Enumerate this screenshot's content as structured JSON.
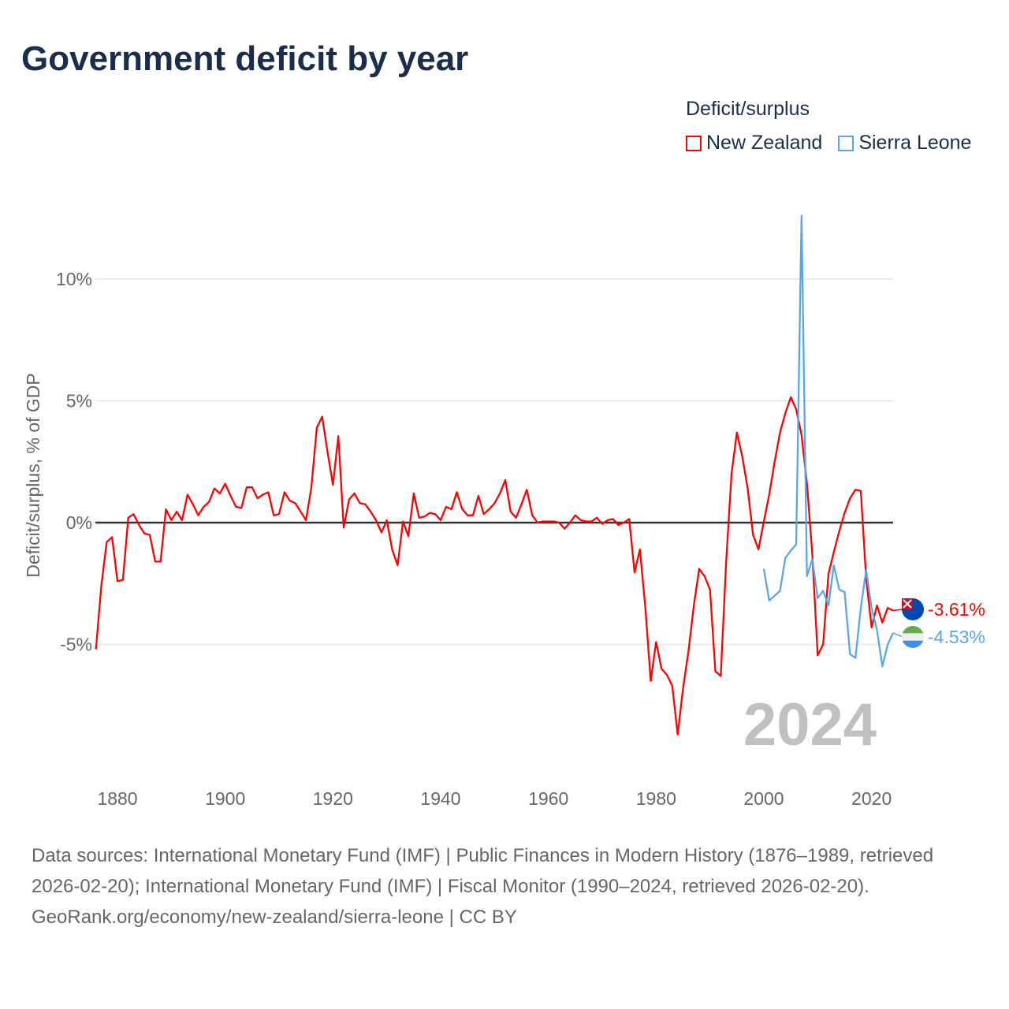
{
  "title": "Government deficit by year",
  "legend": {
    "title": "Deficit/surplus"
  },
  "colors": {
    "nz": "#ff0000",
    "sl": "#5aa6ee",
    "zero": "#333333",
    "grid": "#e6e6e6"
  },
  "chart_data": {
    "type": "line",
    "title": "Government deficit by year",
    "xlabel": "",
    "ylabel": "Deficit/surplus, % of GDP",
    "xlim": [
      1876,
      2024
    ],
    "ylim": [
      -10,
      13.5
    ],
    "x_ticks": [
      1880,
      1900,
      1920,
      1940,
      1960,
      1980,
      2000,
      2020
    ],
    "y_ticks": [
      {
        "value": 10,
        "label": "10%"
      },
      {
        "value": 5,
        "label": "5%"
      },
      {
        "value": 0,
        "label": "0%"
      },
      {
        "value": -5,
        "label": "-5%"
      }
    ],
    "grid": true,
    "legend_position": "top-right",
    "year_watermark": "2024",
    "series": [
      {
        "name": "New Zealand",
        "color": "#ff0000",
        "start_year": 1876,
        "end_label": "-3.61%",
        "flag": "new-zealand-flag",
        "values": [
          -5.2,
          -2.6,
          -0.8,
          -0.6,
          -2.4,
          -2.35,
          0.2,
          0.35,
          -0.1,
          -0.45,
          -0.5,
          -1.6,
          -1.6,
          0.55,
          0.1,
          0.45,
          0.1,
          1.15,
          0.75,
          0.3,
          0.65,
          0.85,
          1.4,
          1.2,
          1.6,
          1.1,
          0.65,
          0.6,
          1.45,
          1.45,
          1.0,
          1.15,
          1.25,
          0.3,
          0.35,
          1.25,
          0.9,
          0.8,
          0.45,
          0.1,
          1.45,
          3.9,
          4.35,
          2.9,
          1.55,
          3.55,
          -0.2,
          0.95,
          1.2,
          0.8,
          0.75,
          0.45,
          0.1,
          -0.4,
          0.1,
          -1.1,
          -1.75,
          0.05,
          -0.55,
          1.2,
          0.2,
          0.25,
          0.4,
          0.35,
          0.1,
          0.65,
          0.55,
          1.25,
          0.55,
          0.3,
          0.3,
          1.1,
          0.35,
          0.55,
          0.8,
          1.2,
          1.75,
          0.45,
          0.2,
          0.75,
          1.35,
          0.3,
          0.0,
          0.05,
          0.05,
          0.05,
          0.0,
          -0.25,
          0.0,
          0.3,
          0.1,
          0.05,
          0.05,
          0.2,
          -0.05,
          0.1,
          0.15,
          -0.1,
          0.0,
          0.15,
          -2.05,
          -1.1,
          -3.5,
          -6.5,
          -4.9,
          -6.0,
          -6.25,
          -6.7,
          -8.7,
          -6.8,
          -5.3,
          -3.4,
          -1.9,
          -2.2,
          -2.75,
          -6.1,
          -6.3,
          -1.6,
          2.0,
          3.7,
          2.7,
          1.4,
          -0.5,
          -1.1,
          0.05,
          1.15,
          2.5,
          3.7,
          4.5,
          5.15,
          4.65,
          3.6,
          1.6,
          -1.3,
          -5.45,
          -5.0,
          -2.1,
          -1.2,
          -0.35,
          0.4,
          1.0,
          1.35,
          1.3,
          -2.3,
          -4.3,
          -3.4,
          -4.1,
          -3.5,
          -3.61
        ]
      },
      {
        "name": "Sierra Leone",
        "color": "#5aa6ee",
        "start_year": 2000,
        "end_label": "-4.53%",
        "flag": "sierra-leone-flag",
        "values": [
          -1.9,
          -3.2,
          -3.0,
          -2.8,
          -1.45,
          -1.15,
          -0.9,
          12.6,
          -2.2,
          -1.5,
          -3.1,
          -2.8,
          -3.4,
          -1.75,
          -2.75,
          -2.85,
          -5.4,
          -5.55,
          -3.5,
          -1.95,
          -3.5,
          -4.4,
          -5.9,
          -5.0,
          -4.53
        ]
      }
    ]
  },
  "footer": {
    "sources": "Data sources: International Monetary Fund (IMF) | Public Finances in Modern History (1876–1989, retrieved 2026-02-20); International Monetary Fund (IMF) | Fiscal Monitor (1990–2024, retrieved 2026-02-20).",
    "link": "GeoRank.org/economy/new-zealand/sierra-leone | CC BY"
  }
}
